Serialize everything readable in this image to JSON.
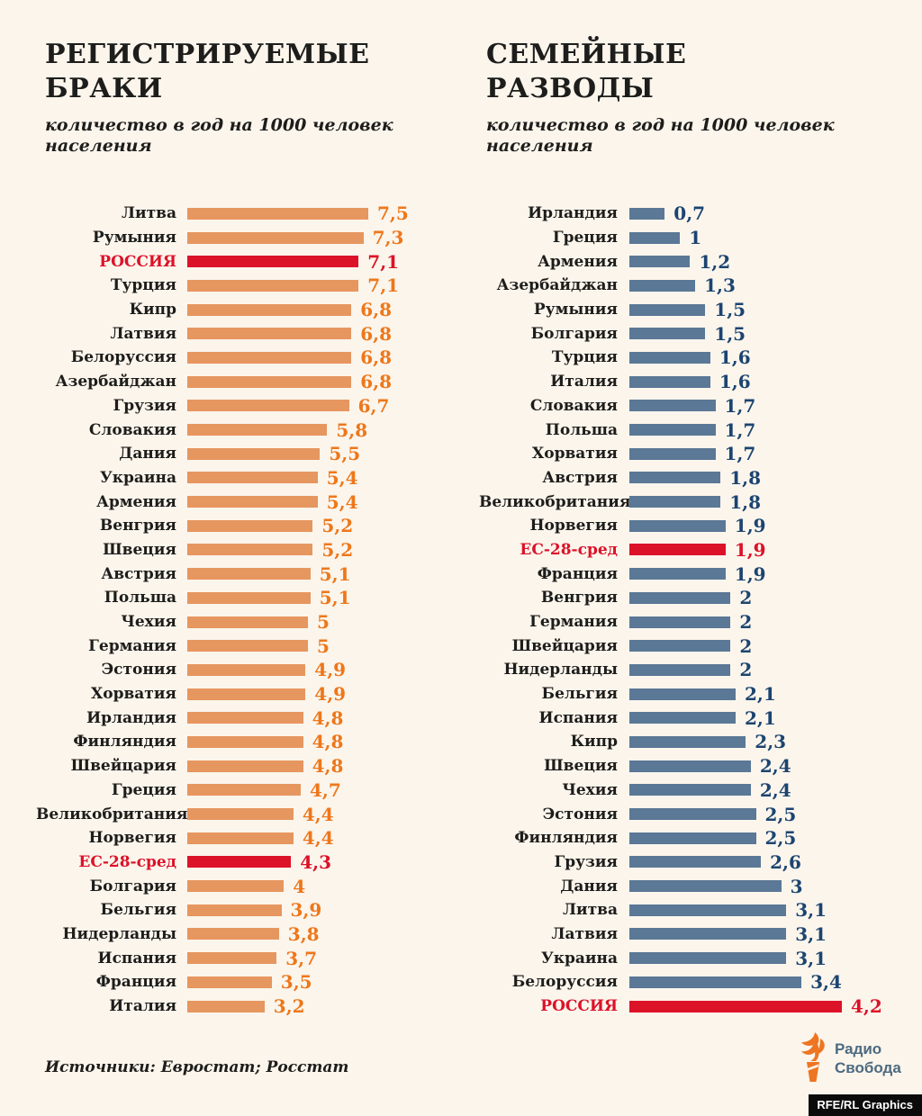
{
  "page": {
    "background_color": "#fbf5ec",
    "text_color": "#1d1d1b"
  },
  "left_chart": {
    "title": "РЕГИСТРИРУЕМЫЕ\nБРАКИ",
    "subtitle": "количество в год на 1000 человек\nнаселения"
  },
  "right_chart": {
    "title": "СЕМЕЙНЫЕ\nРАЗВОДЫ",
    "subtitle": "количество в год на 1000 человек\nнаселения"
  },
  "chart_data": [
    {
      "type": "bar",
      "orientation": "horizontal",
      "title": "РЕГИСТРИРУЕМЫЕ БРАКИ",
      "subtitle": "количество в год на 1000 человек населения",
      "grid": false,
      "legend": false,
      "xlim": [
        0,
        7.5
      ],
      "bar_color": "#e6965f",
      "value_color": "#ee771a",
      "highlight_color": "#dc1228",
      "categories": [
        "Литва",
        "Румыния",
        "РОССИЯ",
        "Турция",
        "Кипр",
        "Латвия",
        "Белоруссия",
        "Азербайджан",
        "Грузия",
        "Словакия",
        "Дания",
        "Украина",
        "Армения",
        "Венгрия",
        "Швеция",
        "Австрия",
        "Польша",
        "Чехия",
        "Германия",
        "Эстония",
        "Хорватия",
        "Ирландия",
        "Финляндия",
        "Швейцария",
        "Греция",
        "Великобритания",
        "Норвегия",
        "ЕС-28-сред",
        "Болгария",
        "Бельгия",
        "Нидерланды",
        "Испания",
        "Франция",
        "Италия"
      ],
      "values": [
        7.5,
        7.3,
        7.1,
        7.1,
        6.8,
        6.8,
        6.8,
        6.8,
        6.7,
        5.8,
        5.5,
        5.4,
        5.4,
        5.2,
        5.2,
        5.1,
        5.1,
        5,
        5,
        4.9,
        4.9,
        4.8,
        4.8,
        4.8,
        4.7,
        4.4,
        4.4,
        4.3,
        4,
        3.9,
        3.8,
        3.7,
        3.5,
        3.2
      ],
      "value_labels": [
        "7,5",
        "7,3",
        "7,1",
        "7,1",
        "6,8",
        "6,8",
        "6,8",
        "6,8",
        "6,7",
        "5,8",
        "5,5",
        "5,4",
        "5,4",
        "5,2",
        "5,2",
        "5,1",
        "5,1",
        "5",
        "5",
        "4,9",
        "4,9",
        "4,8",
        "4,8",
        "4,8",
        "4,7",
        "4,4",
        "4,4",
        "4,3",
        "4",
        "3,9",
        "3,8",
        "3,7",
        "3,5",
        "3,2"
      ],
      "highlight_categories": [
        "РОССИЯ",
        "ЕС-28-сред"
      ]
    },
    {
      "type": "bar",
      "orientation": "horizontal",
      "title": "СЕМЕЙНЫЕ РАЗВОДЫ",
      "subtitle": "количество в год на 1000 человек населения",
      "grid": false,
      "legend": false,
      "xlim": [
        0,
        4.2
      ],
      "bar_color": "#5b7896",
      "value_color": "#1c4470",
      "highlight_color": "#dc1228",
      "categories": [
        "Ирландия",
        "Греция",
        "Армения",
        "Азербайджан",
        "Румыния",
        "Болгария",
        "Турция",
        "Италия",
        "Словакия",
        "Польша",
        "Хорватия",
        "Австрия",
        "Великобритания",
        "Норвегия",
        "ЕС-28-сред",
        "Франция",
        "Венгрия",
        "Германия",
        "Швейцария",
        "Нидерланды",
        "Бельгия",
        "Испания",
        "Кипр",
        "Швеция",
        "Чехия",
        "Эстония",
        "Финляндия",
        "Грузия",
        "Дания",
        "Литва",
        "Латвия",
        "Украина",
        "Белоруссия",
        "РОССИЯ"
      ],
      "values": [
        0.7,
        1,
        1.2,
        1.3,
        1.5,
        1.5,
        1.6,
        1.6,
        1.7,
        1.7,
        1.7,
        1.8,
        1.8,
        1.9,
        1.9,
        1.9,
        2,
        2,
        2,
        2,
        2.1,
        2.1,
        2.3,
        2.4,
        2.4,
        2.5,
        2.5,
        2.6,
        3,
        3.1,
        3.1,
        3.1,
        3.4,
        4.2
      ],
      "value_labels": [
        "0,7",
        "1",
        "1,2",
        "1,3",
        "1,5",
        "1,5",
        "1,6",
        "1,6",
        "1,7",
        "1,7",
        "1,7",
        "1,8",
        "1,8",
        "1,9",
        "1,9",
        "1,9",
        "2",
        "2",
        "2",
        "2",
        "2,1",
        "2,1",
        "2,3",
        "2,4",
        "2,4",
        "2,5",
        "2,5",
        "2,6",
        "3",
        "3,1",
        "3,1",
        "3,1",
        "3,4",
        "4,2"
      ],
      "highlight_categories": [
        "РОССИЯ",
        "ЕС-28-сред"
      ]
    }
  ],
  "footer": {
    "source": "Источники: Евростат; Росстат",
    "logo_text": "Радио\nСвобода",
    "credit_badge": "RFE/RL Graphics"
  }
}
